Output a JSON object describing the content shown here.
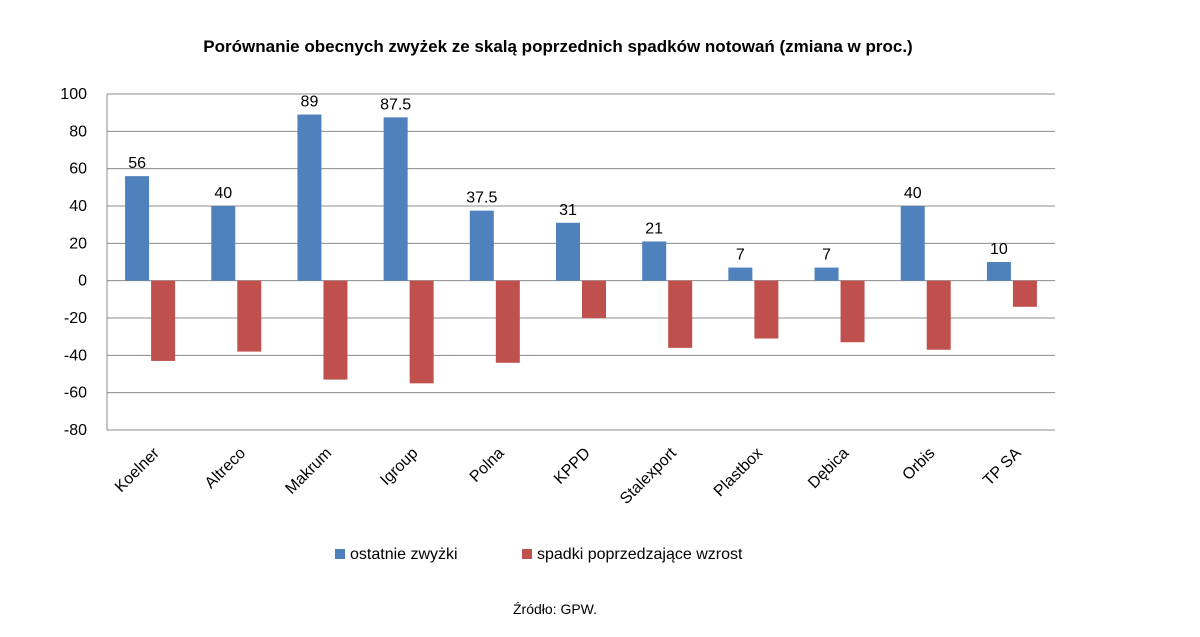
{
  "chart_data": {
    "type": "bar",
    "title": "Porównanie obecnych zwyżek ze skalą poprzednich spadków notowań (zmiana w proc.)",
    "categories": [
      "Koelner",
      "Altreco",
      "Makrum",
      "Igroup",
      "Polna",
      "KPPD",
      "Stalexport",
      "Plastbox",
      "Dębica",
      "Orbis",
      "TP SA"
    ],
    "series": [
      {
        "name": "ostatnie zwyżki",
        "color": "#4f81bd",
        "values": [
          56,
          40,
          89,
          87.5,
          37.5,
          31,
          21,
          7,
          7,
          40,
          10
        ],
        "data_labels": [
          "56",
          "40",
          "89",
          "87.5",
          "37.5",
          "31",
          "21",
          "7",
          "7",
          "40",
          "10"
        ]
      },
      {
        "name": "spadki poprzedzające wzrost",
        "color": "#c0504d",
        "values": [
          -43,
          -38,
          -53,
          -55,
          -44,
          -20,
          -36,
          -31,
          -33,
          -37,
          -14
        ]
      }
    ],
    "ylim": [
      -80,
      100
    ],
    "yticks": [
      "100",
      "80",
      "60",
      "40",
      "20",
      "0",
      "-20",
      "-40",
      "-60",
      "-80"
    ],
    "grid": true,
    "legend": "bottom",
    "source": "Źródło: GPW."
  }
}
